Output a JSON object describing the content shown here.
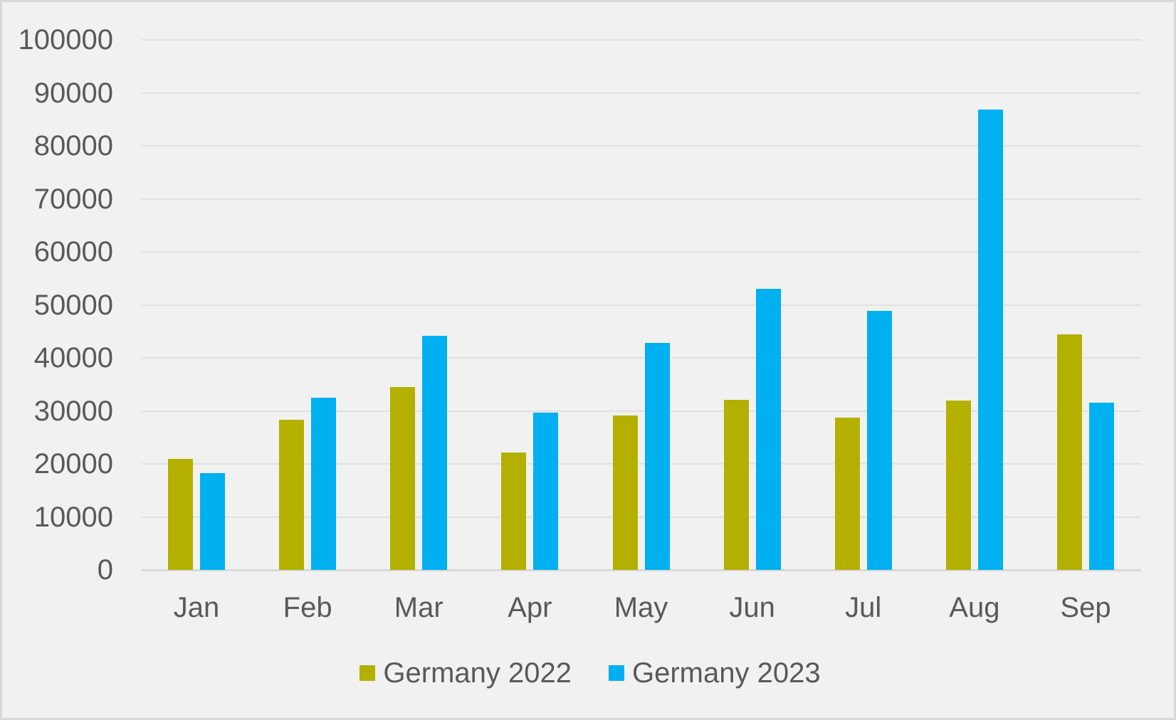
{
  "chart_data": {
    "type": "bar",
    "title": "",
    "categories": [
      "Jan",
      "Feb",
      "Mar",
      "Apr",
      "May",
      "Jun",
      "Jul",
      "Aug",
      "Sep"
    ],
    "series": [
      {
        "name": "Germany 2022",
        "color": "#b3b000",
        "values": [
          20900,
          28300,
          34500,
          22100,
          29100,
          32100,
          28700,
          31900,
          44400
        ]
      },
      {
        "name": "Germany 2023",
        "color": "#00b0f0",
        "values": [
          18200,
          32500,
          44100,
          29700,
          42800,
          53000,
          48800,
          86800,
          31600
        ]
      }
    ],
    "xlabel": "",
    "ylabel": "",
    "ylim": [
      0,
      100000
    ],
    "ytick_step": 10000,
    "yticks": [
      0,
      10000,
      20000,
      30000,
      40000,
      50000,
      60000,
      70000,
      80000,
      90000,
      100000
    ],
    "grid": true,
    "legend_position": "bottom"
  },
  "style_colors": {
    "background": "#f1f1f1",
    "border": "#d8d8d8",
    "gridline": "#e0e0e0",
    "axis_line": "#d9d9d9",
    "text": "#595959"
  }
}
